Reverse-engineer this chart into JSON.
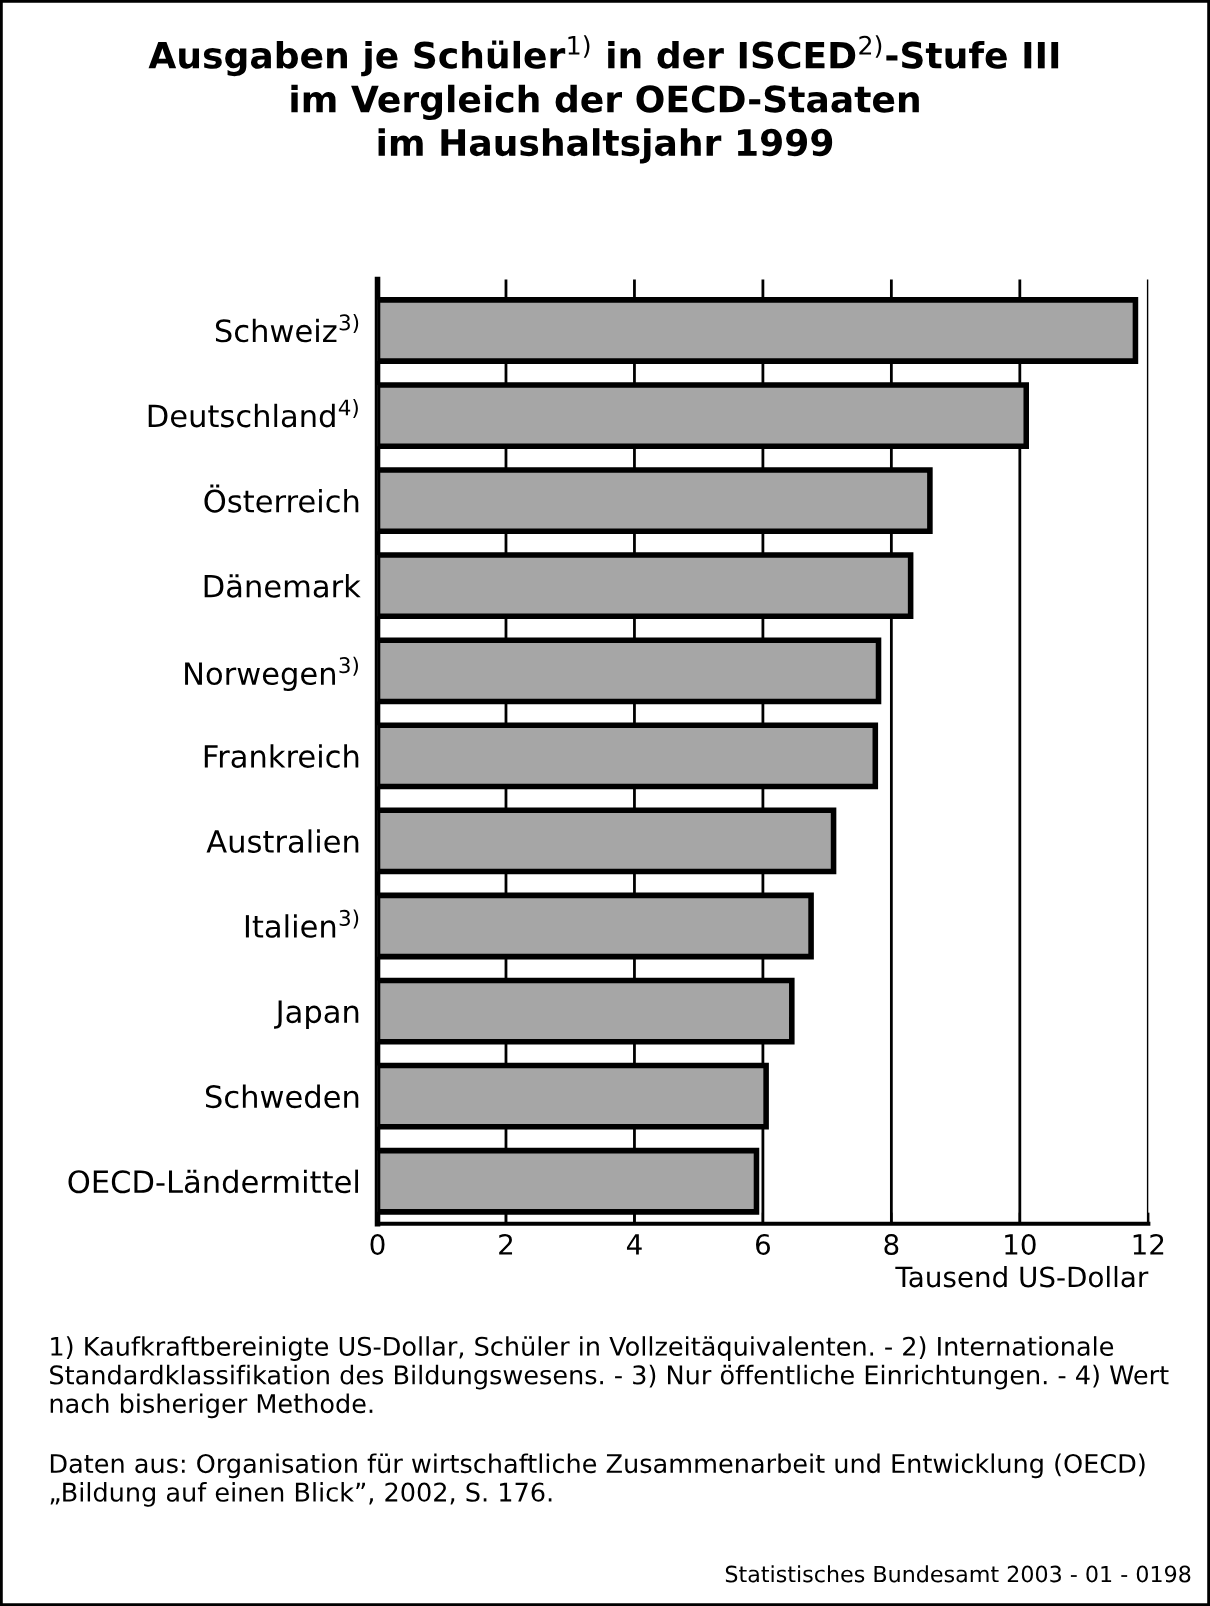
{
  "chart_data": {
    "type": "bar",
    "orientation": "horizontal",
    "title": "Ausgaben je Schüler$^{1)}$ in der ISCED$^{2)}$-Stufe III\nim Vergleich der OECD-Staaten\nim Haushaltsjahr 1999",
    "categories": [
      "Schweiz$^{3)}$",
      "Deutschland$^{4)}$",
      "Österreich",
      "Dänemark",
      "Norwegen$^{3)}$",
      "Frankreich",
      "Australien",
      "Italien$^{3)}$",
      "Japan",
      "Schweden",
      "OECD-Ländermittel"
    ],
    "values": [
      11.8,
      10.1,
      8.6,
      8.3,
      7.8,
      7.75,
      7.1,
      6.75,
      6.45,
      6.05,
      5.9
    ],
    "color": "#a6a6a6",
    "xlim": [
      0,
      12
    ],
    "xticks": [
      0,
      2,
      4,
      6,
      8,
      10,
      12
    ],
    "xlabel": "Tausend US-Dollar",
    "grid": "x",
    "legend": false,
    "annotations": [
      "1) Kaufkraftbereinigte US-Dollar, Schüler in Vollzeitäquivalenten. - 2) Internationale Standardklassifikation des Bildungswesens. - 3) Nur öffentliche Einrichtungen. - 4) Wert nach bisheriger Methode.",
      "Daten aus: Organisation für wirtschaftliche Zusammenarbeit und Entwicklung (OECD) „Bildung auf einen Blick”, 2002, S. 176.",
      "Statistisches Bundesamt 2003 - 01 - 0198"
    ]
  }
}
